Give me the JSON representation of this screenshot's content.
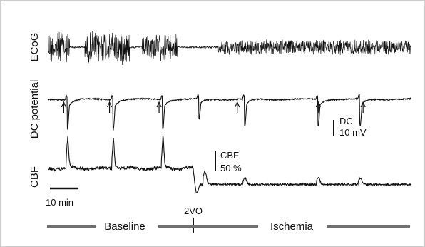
{
  "chart_data": {
    "type": "line",
    "time_unit": "min",
    "event_label": "2VO",
    "event_time_min": 155,
    "total_time_min": 380,
    "phases": [
      {
        "label": "Baseline",
        "start_min": 0,
        "end_min": 155
      },
      {
        "label": "Ischemia",
        "start_min": 155,
        "end_min": 380
      }
    ],
    "series": [
      {
        "name": "ECoG",
        "kind": "ecog",
        "color": "#111111",
        "bursts_min": [
          [
            0,
            22
          ],
          [
            38,
            85
          ],
          [
            98,
            135
          ],
          [
            178,
            380
          ]
        ],
        "bursts_amplitude": [
          1.0,
          1.0,
          0.8,
          0.45
        ],
        "isoelectric_min": [
          [
            22,
            38
          ],
          [
            85,
            98
          ],
          [
            135,
            178
          ]
        ]
      },
      {
        "name": "DC potential",
        "kind": "dc",
        "color": "#111111",
        "spreading_depolarizations_min": [
          20,
          68,
          120,
          158,
          206,
          283,
          327
        ],
        "sd_marker_min": [
          16,
          64,
          116,
          198,
          283,
          330
        ]
      },
      {
        "name": "CBF",
        "kind": "cbf",
        "color": "#111111",
        "baseline_percent": 100,
        "ischemia_percent": 60,
        "hyperemia_peaks_min": [
          20,
          68,
          120
        ],
        "hypoperfusion_dip_min": 155,
        "post_event_peaks_min": [
          164,
          206,
          283,
          327
        ]
      }
    ],
    "scale_bars": {
      "time": {
        "label": "10 min",
        "value": 10
      },
      "dc": {
        "label_top": "DC",
        "label_bottom": "10 mV",
        "value": 10
      },
      "cbf": {
        "label_top": "CBF",
        "label_bottom": "50 %",
        "value": 50
      }
    }
  }
}
